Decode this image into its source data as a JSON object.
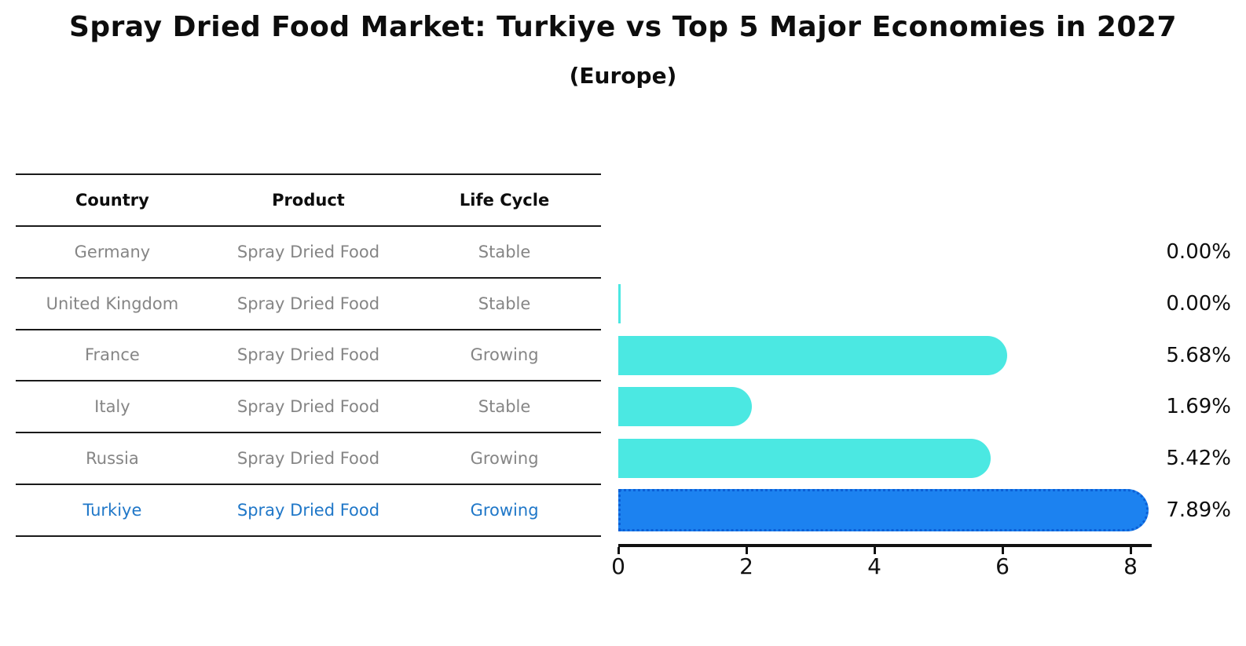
{
  "title": "Spray Dried Food Market: Turkiye vs Top 5 Major Economies in 2027",
  "subtitle": "(Europe)",
  "table": {
    "headers": [
      "Country",
      "Product",
      "Life Cycle"
    ],
    "rows": [
      {
        "country": "Germany",
        "product": "Spray Dried Food",
        "life_cycle": "Stable",
        "highlight": false
      },
      {
        "country": "United Kingdom",
        "product": "Spray Dried Food",
        "life_cycle": "Stable",
        "highlight": false
      },
      {
        "country": "France",
        "product": "Spray Dried Food",
        "life_cycle": "Growing",
        "highlight": false
      },
      {
        "country": "Italy",
        "product": "Spray Dried Food",
        "life_cycle": "Stable",
        "highlight": false
      },
      {
        "country": "Russia",
        "product": "Spray Dried Food",
        "life_cycle": "Growing",
        "highlight": false
      },
      {
        "country": "Turkiye",
        "product": "Spray Dried Food",
        "life_cycle": "Growing",
        "highlight": true
      }
    ]
  },
  "chart_data": {
    "type": "bar",
    "orientation": "horizontal",
    "title": "Spray Dried Food Market: Turkiye vs Top 5 Major Economies in 2027 (Europe)",
    "categories": [
      "Germany",
      "United Kingdom",
      "France",
      "Italy",
      "Russia",
      "Turkiye"
    ],
    "values": [
      0.0,
      0.0,
      5.68,
      1.69,
      5.42,
      7.89
    ],
    "value_labels": [
      "0.00%",
      "0.00%",
      "5.68%",
      "1.69%",
      "5.42%",
      "7.89%"
    ],
    "zero_sliver": [
      false,
      true,
      false,
      false,
      false,
      false
    ],
    "xlim": [
      0,
      8.3
    ],
    "xticks": [
      0,
      2,
      4,
      6,
      8
    ],
    "xtick_labels": [
      "0",
      "2",
      "4",
      "6",
      "8"
    ],
    "grid": false,
    "legend": "none",
    "highlight_index": 5
  },
  "colors": {
    "bar_default": "#4BE8E2",
    "bar_highlight": "#1C82F0",
    "bar_highlight_border": "#0B5FD6",
    "highlight_text": "#1F77C8",
    "table_text": "#858585",
    "header_text": "#0D0D0D",
    "axis": "#111111"
  }
}
